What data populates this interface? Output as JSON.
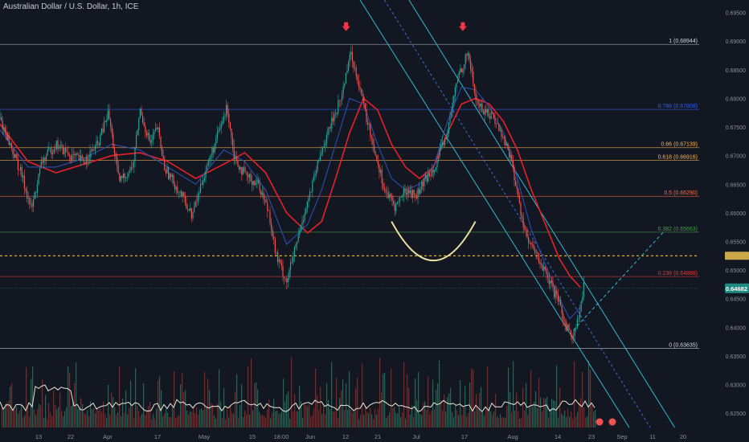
{
  "header": {
    "title": "Australian Dollar / U.S. Dollar, 1h, ICE"
  },
  "colors": {
    "background": "#131722",
    "up": "#26a69a",
    "down": "#ef5350",
    "ma_red": "#e8202a",
    "ma_blue": "#2a4fb0",
    "channel": "#2fb8d6",
    "arc": "#ece2a0",
    "arrow": "#f23645",
    "price_badge": "#1f8a80"
  },
  "chart_data": {
    "type": "candlestick",
    "symbol": "AUDUSD",
    "timeframe": "1h",
    "ylim": [
      0.6225,
      0.6955
    ],
    "y_ticks": [
      "0.69500",
      "0.69000",
      "0.68500",
      "0.68000",
      "0.67500",
      "0.67000",
      "0.66500",
      "0.66000",
      "0.65500",
      "0.65000",
      "0.64500",
      "0.64000",
      "0.63500",
      "0.63000",
      "0.62500"
    ],
    "x_ticks": [
      "13",
      "22",
      "Apr",
      "17",
      "May",
      "15",
      "18:00",
      "Jun",
      "12",
      "21",
      "Jul",
      "17",
      "Aug",
      "14",
      "23",
      "Sep",
      "11",
      "20"
    ],
    "fib_levels": [
      {
        "label": "1 (0.68944)",
        "value": 0.68944,
        "color": "#d1d4dc"
      },
      {
        "label": "0.786 (0.67808)",
        "value": 0.67808,
        "color": "#2962ff"
      },
      {
        "label": "0.66 (0.67139)",
        "value": 0.67139,
        "color": "#ffb74d"
      },
      {
        "label": "0.618 (0.66916)",
        "value": 0.66916,
        "color": "#ffb74d"
      },
      {
        "label": "0.5 (0.66290)",
        "value": 0.6629,
        "color": "#ff7043"
      },
      {
        "label": "0.382 (0.65663)",
        "value": 0.65663,
        "color": "#43a047"
      },
      {
        "label": "0.236 (0.64888)",
        "value": 0.64888,
        "color": "#e53935"
      },
      {
        "label": "0 (0.63635)",
        "value": 0.63635,
        "color": "#d1d4dc"
      }
    ],
    "current_price": {
      "label": "0.64682",
      "value": 0.64682
    },
    "dashed_level": {
      "value": 0.6525
    },
    "price_path": [
      [
        0,
        0.6765
      ],
      [
        0.03,
        0.667
      ],
      [
        0.045,
        0.6605
      ],
      [
        0.06,
        0.669
      ],
      [
        0.08,
        0.672
      ],
      [
        0.1,
        0.67
      ],
      [
        0.12,
        0.669
      ],
      [
        0.14,
        0.672
      ],
      [
        0.155,
        0.6775
      ],
      [
        0.17,
        0.6655
      ],
      [
        0.19,
        0.668
      ],
      [
        0.2,
        0.678
      ],
      [
        0.215,
        0.672
      ],
      [
        0.225,
        0.675
      ],
      [
        0.235,
        0.668
      ],
      [
        0.26,
        0.663
      ],
      [
        0.275,
        0.6595
      ],
      [
        0.29,
        0.666
      ],
      [
        0.31,
        0.673
      ],
      [
        0.325,
        0.6785
      ],
      [
        0.335,
        0.67
      ],
      [
        0.35,
        0.6665
      ],
      [
        0.37,
        0.665
      ],
      [
        0.385,
        0.66
      ],
      [
        0.395,
        0.6525
      ],
      [
        0.41,
        0.648
      ],
      [
        0.425,
        0.655
      ],
      [
        0.435,
        0.66
      ],
      [
        0.445,
        0.664
      ],
      [
        0.46,
        0.671
      ],
      [
        0.475,
        0.676
      ],
      [
        0.49,
        0.681
      ],
      [
        0.5,
        0.688
      ],
      [
        0.51,
        0.6845
      ],
      [
        0.525,
        0.676
      ],
      [
        0.54,
        0.669
      ],
      [
        0.55,
        0.664
      ],
      [
        0.565,
        0.661
      ],
      [
        0.58,
        0.664
      ],
      [
        0.595,
        0.663
      ],
      [
        0.61,
        0.666
      ],
      [
        0.625,
        0.669
      ],
      [
        0.64,
        0.674
      ],
      [
        0.655,
        0.684
      ],
      [
        0.67,
        0.688
      ],
      [
        0.68,
        0.68
      ],
      [
        0.69,
        0.678
      ],
      [
        0.705,
        0.677
      ],
      [
        0.72,
        0.673
      ],
      [
        0.73,
        0.67
      ],
      [
        0.745,
        0.66
      ],
      [
        0.755,
        0.655
      ],
      [
        0.77,
        0.652
      ],
      [
        0.785,
        0.648
      ],
      [
        0.8,
        0.644
      ],
      [
        0.81,
        0.64
      ],
      [
        0.82,
        0.6385
      ],
      [
        0.83,
        0.643
      ],
      [
        0.835,
        0.647
      ]
    ],
    "series": [
      {
        "type": "moving_average_red",
        "values": [
          [
            0,
            0.6755
          ],
          [
            0.04,
            0.669
          ],
          [
            0.08,
            0.667
          ],
          [
            0.12,
            0.6685
          ],
          [
            0.16,
            0.67
          ],
          [
            0.2,
            0.6705
          ],
          [
            0.24,
            0.669
          ],
          [
            0.28,
            0.666
          ],
          [
            0.32,
            0.6685
          ],
          [
            0.35,
            0.6705
          ],
          [
            0.38,
            0.667
          ],
          [
            0.41,
            0.66
          ],
          [
            0.44,
            0.6565
          ],
          [
            0.46,
            0.6585
          ],
          [
            0.48,
            0.666
          ],
          [
            0.5,
            0.674
          ],
          [
            0.52,
            0.68
          ],
          [
            0.54,
            0.678
          ],
          [
            0.56,
            0.672
          ],
          [
            0.58,
            0.668
          ],
          [
            0.6,
            0.666
          ],
          [
            0.62,
            0.668
          ],
          [
            0.64,
            0.674
          ],
          [
            0.66,
            0.679
          ],
          [
            0.68,
            0.68
          ],
          [
            0.7,
            0.679
          ],
          [
            0.72,
            0.676
          ],
          [
            0.74,
            0.671
          ],
          [
            0.76,
            0.664
          ],
          [
            0.78,
            0.658
          ],
          [
            0.8,
            0.652
          ],
          [
            0.815,
            0.649
          ],
          [
            0.83,
            0.647
          ]
        ]
      },
      {
        "type": "moving_average_blue",
        "values": [
          [
            0,
            0.6745
          ],
          [
            0.04,
            0.668
          ],
          [
            0.08,
            0.668
          ],
          [
            0.12,
            0.6695
          ],
          [
            0.16,
            0.672
          ],
          [
            0.2,
            0.671
          ],
          [
            0.24,
            0.668
          ],
          [
            0.28,
            0.665
          ],
          [
            0.32,
            0.671
          ],
          [
            0.35,
            0.669
          ],
          [
            0.38,
            0.664
          ],
          [
            0.41,
            0.6545
          ],
          [
            0.44,
            0.658
          ],
          [
            0.46,
            0.664
          ],
          [
            0.48,
            0.672
          ],
          [
            0.5,
            0.68
          ],
          [
            0.52,
            0.679
          ],
          [
            0.54,
            0.672
          ],
          [
            0.56,
            0.666
          ],
          [
            0.58,
            0.664
          ],
          [
            0.6,
            0.665
          ],
          [
            0.62,
            0.668
          ],
          [
            0.64,
            0.676
          ],
          [
            0.66,
            0.682
          ],
          [
            0.68,
            0.6815
          ],
          [
            0.7,
            0.6785
          ],
          [
            0.72,
            0.674
          ],
          [
            0.74,
            0.666
          ],
          [
            0.76,
            0.657
          ],
          [
            0.78,
            0.651
          ],
          [
            0.8,
            0.645
          ],
          [
            0.815,
            0.6415
          ],
          [
            0.83,
            0.6435
          ]
        ]
      }
    ],
    "annotations": [
      {
        "type": "down_arrow",
        "x_frac": 0.495,
        "at_price": 0.6905
      },
      {
        "type": "down_arrow",
        "x_frac": 0.662,
        "at_price": 0.6905
      },
      {
        "type": "rounded_bottom_arc",
        "from": [
          0.56,
          0.6585
        ],
        "to": [
          0.68,
          0.6585
        ],
        "low": 0.6515
      },
      {
        "type": "descending_channel"
      },
      {
        "type": "projection_dashed",
        "from": [
          0.82,
          0.6395
        ],
        "to": [
          0.96,
          0.657
        ]
      }
    ],
    "grid": false,
    "volume_panel": true
  }
}
